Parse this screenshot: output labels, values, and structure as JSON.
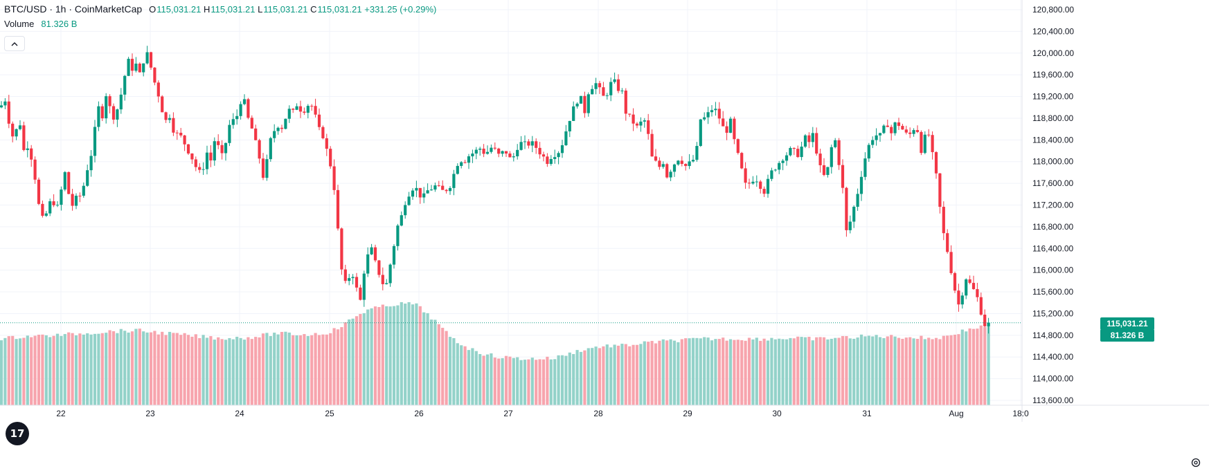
{
  "legend": {
    "symbol": "BTC/USD · 1h · CoinMarketCap",
    "open_label": "O",
    "open": "115,031.21",
    "high_label": "H",
    "high": "115,031.21",
    "low_label": "L",
    "low": "115,031.21",
    "close_label": "C",
    "close": "115,031.21",
    "change": "+331.25 (+0.29%)",
    "volume_label": "Volume",
    "volume_value": "81.326 B"
  },
  "collapse_icon": "chevron-up-icon",
  "price_tag": "115,031.21",
  "volume_tag": "81.326 B",
  "logo_text": "17",
  "colors": {
    "up": "#089981",
    "down": "#f23645",
    "up_volume": "#93d2c9",
    "down_volume": "#f7a4ad",
    "grid": "#f0f3fa",
    "axis_text": "#131722"
  },
  "chart_data": {
    "type": "candlestick",
    "interval": "1h",
    "y_axis": {
      "min": 113600,
      "max": 120800,
      "ticks": [
        "120,800.00",
        "120,400.00",
        "120,000.00",
        "119,600.00",
        "119,200.00",
        "118,800.00",
        "118,400.00",
        "118,000.00",
        "117,600.00",
        "117,200.00",
        "116,800.00",
        "116,400.00",
        "116,000.00",
        "115,600.00",
        "115,200.00",
        "114,800.00",
        "114,400.00",
        "114,000.00",
        "113,600.00"
      ]
    },
    "x_axis": {
      "labels": [
        "22",
        "23",
        "24",
        "25",
        "26",
        "27",
        "28",
        "29",
        "30",
        "31",
        "Aug",
        "18:0"
      ]
    },
    "close_path": [
      [
        0,
        119000
      ],
      [
        8,
        119150
      ],
      [
        14,
        118650
      ],
      [
        20,
        118400
      ],
      [
        28,
        118800
      ],
      [
        34,
        118200
      ],
      [
        40,
        118300
      ],
      [
        46,
        118050
      ],
      [
        52,
        117600
      ],
      [
        58,
        117000
      ],
      [
        64,
        116900
      ],
      [
        70,
        117200
      ],
      [
        76,
        117300
      ],
      [
        82,
        117100
      ],
      [
        88,
        117450
      ],
      [
        94,
        117800
      ],
      [
        100,
        117350
      ],
      [
        106,
        117150
      ],
      [
        112,
        117400
      ],
      [
        118,
        117350
      ],
      [
        124,
        117800
      ],
      [
        130,
        118000
      ],
      [
        136,
        118500
      ],
      [
        142,
        119000
      ],
      [
        148,
        118850
      ],
      [
        154,
        119300
      ],
      [
        160,
        118900
      ],
      [
        166,
        118800
      ],
      [
        172,
        119100
      ],
      [
        178,
        119400
      ],
      [
        184,
        119900
      ],
      [
        190,
        119700
      ],
      [
        196,
        119800
      ],
      [
        202,
        119600
      ],
      [
        208,
        119900
      ],
      [
        214,
        120000
      ],
      [
        220,
        119600
      ],
      [
        226,
        119350
      ],
      [
        232,
        119100
      ],
      [
        238,
        118700
      ],
      [
        244,
        118900
      ],
      [
        250,
        118600
      ],
      [
        256,
        118500
      ],
      [
        262,
        118450
      ],
      [
        268,
        118300
      ],
      [
        274,
        118150
      ],
      [
        280,
        118000
      ],
      [
        286,
        117800
      ],
      [
        292,
        117800
      ],
      [
        298,
        118200
      ],
      [
        304,
        118000
      ],
      [
        310,
        118400
      ],
      [
        316,
        118250
      ],
      [
        322,
        118050
      ],
      [
        328,
        118500
      ],
      [
        334,
        118800
      ],
      [
        340,
        118700
      ],
      [
        346,
        119100
      ],
      [
        352,
        119150
      ],
      [
        358,
        118800
      ],
      [
        364,
        118600
      ],
      [
        370,
        118300
      ],
      [
        376,
        118000
      ],
      [
        382,
        117600
      ],
      [
        388,
        118300
      ],
      [
        394,
        118500
      ],
      [
        400,
        118700
      ],
      [
        406,
        118600
      ],
      [
        412,
        118800
      ],
      [
        418,
        118950
      ],
      [
        424,
        118900
      ],
      [
        430,
        119100
      ],
      [
        436,
        118900
      ],
      [
        442,
        119000
      ],
      [
        448,
        119100
      ],
      [
        454,
        118900
      ],
      [
        460,
        118600
      ],
      [
        466,
        118500
      ],
      [
        472,
        118200
      ],
      [
        478,
        117900
      ],
      [
        484,
        117400
      ],
      [
        490,
        116400
      ],
      [
        496,
        115700
      ],
      [
        502,
        115800
      ],
      [
        508,
        116000
      ],
      [
        514,
        115700
      ],
      [
        520,
        115400
      ],
      [
        526,
        116000
      ],
      [
        532,
        116300
      ],
      [
        538,
        116400
      ],
      [
        544,
        116000
      ],
      [
        550,
        115900
      ],
      [
        556,
        115600
      ],
      [
        562,
        116000
      ],
      [
        568,
        116400
      ],
      [
        574,
        116800
      ],
      [
        580,
        117000
      ],
      [
        586,
        117300
      ],
      [
        592,
        117450
      ],
      [
        598,
        117550
      ],
      [
        604,
        117450
      ],
      [
        610,
        117300
      ],
      [
        616,
        117450
      ],
      [
        622,
        117500
      ],
      [
        628,
        117550
      ],
      [
        634,
        117500
      ],
      [
        640,
        117450
      ],
      [
        646,
        117500
      ],
      [
        652,
        117600
      ],
      [
        658,
        117900
      ],
      [
        664,
        118050
      ],
      [
        670,
        118000
      ],
      [
        676,
        118100
      ],
      [
        682,
        118150
      ],
      [
        688,
        118200
      ],
      [
        694,
        118250
      ],
      [
        700,
        118150
      ],
      [
        706,
        118200
      ],
      [
        712,
        118300
      ],
      [
        718,
        118100
      ],
      [
        724,
        118150
      ],
      [
        730,
        118200
      ],
      [
        736,
        118050
      ],
      [
        742,
        118100
      ],
      [
        748,
        118300
      ],
      [
        754,
        118350
      ],
      [
        760,
        118300
      ],
      [
        766,
        118350
      ],
      [
        772,
        118300
      ],
      [
        778,
        118200
      ],
      [
        784,
        118100
      ],
      [
        790,
        118000
      ],
      [
        796,
        118100
      ],
      [
        802,
        118150
      ],
      [
        808,
        118200
      ],
      [
        814,
        118400
      ],
      [
        820,
        118700
      ],
      [
        826,
        118900
      ],
      [
        832,
        119100
      ],
      [
        838,
        119200
      ],
      [
        844,
        118900
      ],
      [
        850,
        119300
      ],
      [
        856,
        119400
      ],
      [
        862,
        119450
      ],
      [
        868,
        119250
      ],
      [
        874,
        119150
      ],
      [
        880,
        119400
      ],
      [
        886,
        119500
      ],
      [
        892,
        119350
      ],
      [
        898,
        119300
      ],
      [
        904,
        118900
      ],
      [
        910,
        118800
      ],
      [
        916,
        118700
      ],
      [
        922,
        118600
      ],
      [
        928,
        118800
      ],
      [
        934,
        118700
      ],
      [
        940,
        118100
      ],
      [
        946,
        118000
      ],
      [
        952,
        117900
      ],
      [
        958,
        118000
      ],
      [
        964,
        117700
      ],
      [
        970,
        117900
      ],
      [
        976,
        118000
      ],
      [
        982,
        118100
      ],
      [
        988,
        117900
      ],
      [
        994,
        117950
      ],
      [
        1000,
        118000
      ],
      [
        1006,
        118200
      ],
      [
        1012,
        118800
      ],
      [
        1018,
        118800
      ],
      [
        1024,
        118900
      ],
      [
        1030,
        119000
      ],
      [
        1036,
        118900
      ],
      [
        1042,
        118700
      ],
      [
        1048,
        118500
      ],
      [
        1054,
        118800
      ],
      [
        1060,
        118400
      ],
      [
        1066,
        118100
      ],
      [
        1072,
        117800
      ],
      [
        1078,
        117500
      ],
      [
        1084,
        117650
      ],
      [
        1090,
        117700
      ],
      [
        1096,
        117650
      ],
      [
        1102,
        117400
      ],
      [
        1108,
        117600
      ],
      [
        1114,
        117800
      ],
      [
        1120,
        117900
      ],
      [
        1126,
        118000
      ],
      [
        1132,
        118100
      ],
      [
        1138,
        118150
      ],
      [
        1144,
        118250
      ],
      [
        1150,
        118100
      ],
      [
        1156,
        118200
      ],
      [
        1162,
        118450
      ],
      [
        1168,
        118350
      ],
      [
        1174,
        118500
      ],
      [
        1180,
        118150
      ],
      [
        1186,
        117800
      ],
      [
        1192,
        117700
      ],
      [
        1198,
        118000
      ],
      [
        1204,
        118550
      ],
      [
        1210,
        118100
      ],
      [
        1216,
        117650
      ],
      [
        1222,
        116700
      ],
      [
        1228,
        116900
      ],
      [
        1234,
        117200
      ],
      [
        1240,
        117500
      ],
      [
        1246,
        117900
      ],
      [
        1252,
        118200
      ],
      [
        1258,
        118400
      ],
      [
        1264,
        118500
      ],
      [
        1270,
        118450
      ],
      [
        1276,
        118600
      ],
      [
        1282,
        118700
      ],
      [
        1288,
        118500
      ],
      [
        1294,
        118750
      ],
      [
        1300,
        118650
      ],
      [
        1306,
        118550
      ],
      [
        1312,
        118450
      ],
      [
        1318,
        118600
      ],
      [
        1324,
        118650
      ],
      [
        1330,
        118200
      ],
      [
        1336,
        118450
      ],
      [
        1342,
        118500
      ],
      [
        1348,
        118000
      ],
      [
        1354,
        117600
      ],
      [
        1360,
        116800
      ],
      [
        1366,
        116500
      ],
      [
        1372,
        116100
      ],
      [
        1378,
        115700
      ],
      [
        1384,
        115350
      ],
      [
        1390,
        115600
      ],
      [
        1396,
        115900
      ],
      [
        1402,
        115700
      ],
      [
        1408,
        115600
      ],
      [
        1414,
        115400
      ],
      [
        1420,
        115050
      ],
      [
        1424,
        114950
      ],
      [
        1428,
        115031
      ]
    ],
    "volume_path": [
      [
        0,
        490
      ],
      [
        40,
        486
      ],
      [
        80,
        485
      ],
      [
        120,
        482
      ],
      [
        160,
        479
      ],
      [
        200,
        478
      ],
      [
        240,
        482
      ],
      [
        280,
        486
      ],
      [
        320,
        489
      ],
      [
        360,
        488
      ],
      [
        400,
        482
      ],
      [
        440,
        484
      ],
      [
        470,
        482
      ],
      [
        490,
        474
      ],
      [
        510,
        460
      ],
      [
        530,
        448
      ],
      [
        550,
        444
      ],
      [
        570,
        440
      ],
      [
        590,
        439
      ],
      [
        600,
        440
      ],
      [
        615,
        452
      ],
      [
        630,
        466
      ],
      [
        645,
        482
      ],
      [
        660,
        494
      ],
      [
        680,
        505
      ],
      [
        700,
        512
      ],
      [
        720,
        516
      ],
      [
        760,
        519
      ],
      [
        800,
        518
      ],
      [
        820,
        512
      ],
      [
        840,
        506
      ],
      [
        860,
        502
      ],
      [
        880,
        500
      ],
      [
        900,
        500
      ],
      [
        940,
        495
      ],
      [
        980,
        492
      ],
      [
        1020,
        490
      ],
      [
        1060,
        490
      ],
      [
        1100,
        490
      ],
      [
        1140,
        489
      ],
      [
        1180,
        490
      ],
      [
        1220,
        488
      ],
      [
        1260,
        486
      ],
      [
        1300,
        487
      ],
      [
        1340,
        489
      ],
      [
        1360,
        488
      ],
      [
        1380,
        482
      ],
      [
        1400,
        476
      ],
      [
        1420,
        472
      ],
      [
        1432,
        470
      ]
    ]
  }
}
